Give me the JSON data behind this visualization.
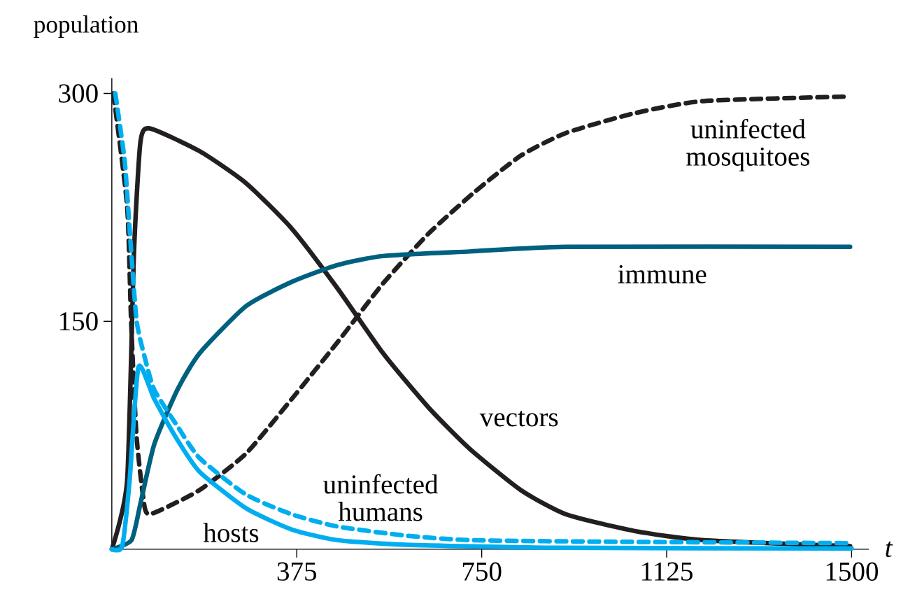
{
  "chart_data": {
    "type": "line",
    "ylabel": "population",
    "xlabel": "t",
    "xlim": [
      0,
      1535
    ],
    "ylim": [
      0,
      310
    ],
    "xticks": [
      375,
      750,
      1125,
      1500
    ],
    "yticks": [
      150,
      300
    ],
    "series": [
      {
        "name": "vectors",
        "color": "#231f20",
        "line_style": "solid",
        "x": [
          0,
          31,
          45,
          58,
          77,
          178,
          272,
          365,
          457,
          550,
          643,
          726,
          829,
          921,
          1060,
          1200,
          1497
        ],
        "values": [
          0,
          45,
          196,
          268,
          277,
          262,
          241,
          211,
          172,
          129,
          93,
          66,
          39,
          23,
          12,
          6,
          2
        ]
      },
      {
        "name": "uninfected mosquitoes",
        "color": "#231f20",
        "line_style": "dashed",
        "x": [
          3,
          31,
          39,
          50,
          67,
          86,
          178,
          272,
          365,
          457,
          550,
          643,
          735,
          829,
          921,
          1060,
          1200,
          1497
        ],
        "values": [
          300,
          226,
          151,
          75,
          27,
          24,
          39,
          63,
          99,
          136,
          175,
          208,
          235,
          259,
          274,
          287,
          295,
          298
        ]
      },
      {
        "name": "immune",
        "color": "#00607f",
        "line_style": "solid",
        "x": [
          0,
          40,
          58,
          86,
          133,
          178,
          272,
          365,
          457,
          550,
          726,
          921,
          1497
        ],
        "values": [
          0,
          6,
          30,
          69,
          105,
          129,
          160,
          176,
          187,
          193,
          196,
          199,
          199
        ]
      },
      {
        "name": "hosts",
        "color": "#00aeef",
        "line_style": "solid",
        "x": [
          0,
          21,
          36,
          54,
          86,
          133,
          178,
          272,
          365,
          457,
          596,
          900,
          1500
        ],
        "values": [
          0,
          2,
          45,
          120,
          99,
          72,
          51,
          27,
          13,
          6,
          3,
          1,
          0.5
        ]
      },
      {
        "name": "uninfected humans",
        "color": "#00aeef",
        "line_style": "dashed",
        "x": [
          7,
          26,
          36,
          50,
          67,
          86,
          133,
          178,
          272,
          365,
          457,
          596,
          726,
          1000,
          1500
        ],
        "values": [
          300,
          256,
          211,
          151,
          126,
          105,
          81,
          60,
          36,
          23,
          15,
          9,
          6,
          5,
          4
        ]
      }
    ]
  }
}
